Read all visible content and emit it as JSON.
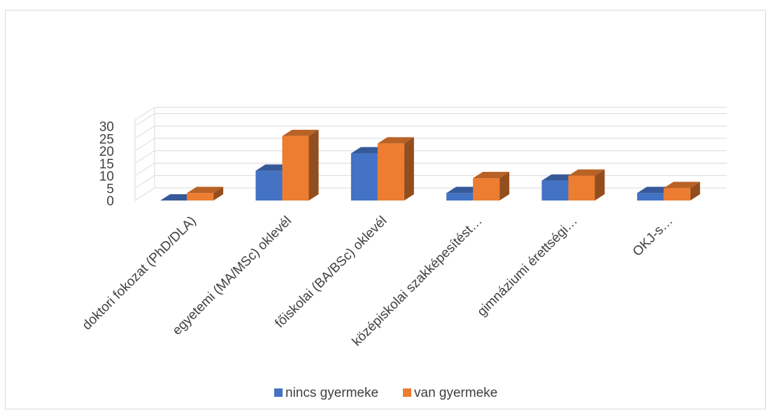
{
  "chart_data": {
    "type": "bar",
    "style": "3d-clustered-column",
    "categories": [
      "doktori fokozat (PhD/DLA)",
      "egyetemi (MA/MSc) oklevél",
      "főiskolai (BA/BSc) oklevél",
      "középiskolai szakképesítést…",
      "gimnáziumi érettségi…",
      "OKJ-s…"
    ],
    "series": [
      {
        "name": "nincs gyermeke",
        "values": [
          0,
          12,
          19,
          3,
          8,
          3
        ],
        "color": "#4472c4"
      },
      {
        "name": "van gyermeke",
        "values": [
          3,
          26,
          23,
          9,
          10,
          5
        ],
        "color": "#ed7d31"
      }
    ],
    "y_ticks": [
      "0",
      "5",
      "10",
      "15",
      "20",
      "25",
      "30"
    ],
    "ylim": [
      0,
      32.5
    ],
    "grid": true,
    "legend_position": "bottom",
    "title": "",
    "xlabel": "",
    "ylabel": ""
  }
}
